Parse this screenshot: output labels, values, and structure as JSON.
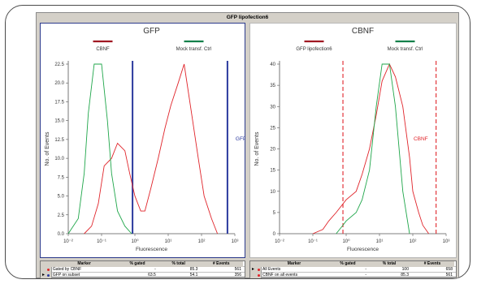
{
  "window": {
    "title": "GFP lipofection6"
  },
  "colors": {
    "red": "#e0242a",
    "green": "#1fa64a",
    "blue": "#2b3a9e",
    "dark_red": "#a01822",
    "dark_green": "#12804a"
  },
  "plots": [
    {
      "title": "GFP",
      "legend": [
        {
          "label": "CBNF",
          "color": "#a01822"
        },
        {
          "label": "Mock transf. Ctrl",
          "color": "#12804a"
        }
      ],
      "ylabel": "No. of Events",
      "xlabel": "Fluorescence",
      "y_ticks": [
        "0.0",
        "2.5",
        "5.0",
        "7.5",
        "10.0",
        "12.5",
        "15.0",
        "17.5",
        "20.0",
        "22.5"
      ],
      "x_ticks": [
        "10⁻²",
        "10⁻¹",
        "10⁰",
        "10¹",
        "10²",
        "10³"
      ],
      "gate_label": "GFP"
    },
    {
      "title": "CBNF",
      "legend": [
        {
          "label": "GFP lipofection6",
          "color": "#a01822"
        },
        {
          "label": "Mock transf. Ctrl",
          "color": "#12804a"
        }
      ],
      "ylabel": "No. of Events",
      "xlabel": "Fluorescence",
      "y_ticks": [
        "0",
        "5",
        "10",
        "15",
        "20",
        "25",
        "30",
        "35",
        "40"
      ],
      "x_ticks": [
        "10⁻²",
        "10⁻¹",
        "10⁰",
        "10¹",
        "10²",
        "10³"
      ],
      "gate_label": "CBNF"
    }
  ],
  "chart_data": [
    {
      "type": "line",
      "title": "GFP",
      "xlabel": "Fluorescence",
      "ylabel": "No. of Events",
      "x_scale": "log",
      "xlim": [
        0.01,
        1000
      ],
      "ylim": [
        0,
        22.5
      ],
      "series": [
        {
          "name": "CBNF",
          "color": "#e0242a",
          "x": [
            0.03,
            0.05,
            0.08,
            0.12,
            0.2,
            0.3,
            0.5,
            0.7,
            1,
            1.5,
            2,
            3,
            5,
            8,
            12,
            20,
            30,
            50,
            80,
            120,
            200,
            300
          ],
          "y": [
            0,
            1,
            4,
            9,
            10,
            12,
            11,
            8,
            5,
            3,
            3,
            6,
            10,
            14,
            17,
            20,
            23,
            16,
            10,
            5,
            2,
            0
          ]
        },
        {
          "name": "Mock transf. Ctrl",
          "color": "#1fa64a",
          "x": [
            0.01,
            0.02,
            0.03,
            0.04,
            0.06,
            0.08,
            0.1,
            0.15,
            0.2,
            0.3,
            0.5,
            0.8
          ],
          "y": [
            0,
            2,
            8,
            16,
            22.5,
            22.5,
            22.5,
            15,
            8,
            3,
            1,
            0
          ]
        }
      ],
      "gates": [
        {
          "label": "GFP",
          "x": [
            0.85,
            600
          ]
        }
      ]
    },
    {
      "type": "line",
      "title": "CBNF",
      "xlabel": "Fluorescence",
      "ylabel": "No. of Events",
      "x_scale": "log",
      "xlim": [
        0.01,
        1000
      ],
      "ylim": [
        0,
        40
      ],
      "series": [
        {
          "name": "GFP lipofection6",
          "color": "#e0242a",
          "x": [
            0.1,
            0.2,
            0.3,
            0.5,
            1,
            2,
            3,
            5,
            8,
            12,
            20,
            30,
            50,
            80,
            100,
            150,
            200,
            300
          ],
          "y": [
            0,
            1,
            3,
            5,
            8,
            10,
            14,
            20,
            28,
            36,
            40,
            37,
            30,
            18,
            10,
            5,
            2,
            0
          ]
        },
        {
          "name": "Mock transf. Ctrl",
          "color": "#1fa64a",
          "x": [
            0.5,
            0.8,
            1,
            2,
            3,
            5,
            8,
            12,
            20,
            30,
            50,
            80
          ],
          "y": [
            0,
            2,
            3,
            5,
            8,
            15,
            30,
            40,
            42,
            30,
            10,
            0
          ]
        }
      ],
      "gates": [
        {
          "label": "CBNF",
          "x": [
            0.8,
            500
          ]
        }
      ]
    }
  ],
  "tables": [
    {
      "headers": [
        "Marker",
        "% gated",
        "% total",
        "# Events"
      ],
      "rows": [
        {
          "name": "Gated by CBNF",
          "dot": "#e0242a",
          "pct_gated": "-",
          "pct_total": "85.3",
          "events": "561",
          "selected": false
        },
        {
          "name": "GFP on subset",
          "dot": "#2b3a9e",
          "pct_gated": "63.5",
          "pct_total": "54.1",
          "events": "356",
          "selected": true
        }
      ]
    },
    {
      "headers": [
        "Marker",
        "% gated",
        "% total",
        "# Events"
      ],
      "rows": [
        {
          "name": "All Events",
          "dot": "#e0242a",
          "pct_gated": "-",
          "pct_total": "100",
          "events": "658",
          "selected": true
        },
        {
          "name": "CBNF on all events",
          "dot": "#e0242a",
          "pct_gated": "-",
          "pct_total": "85.3",
          "events": "561",
          "selected": false
        }
      ]
    }
  ]
}
